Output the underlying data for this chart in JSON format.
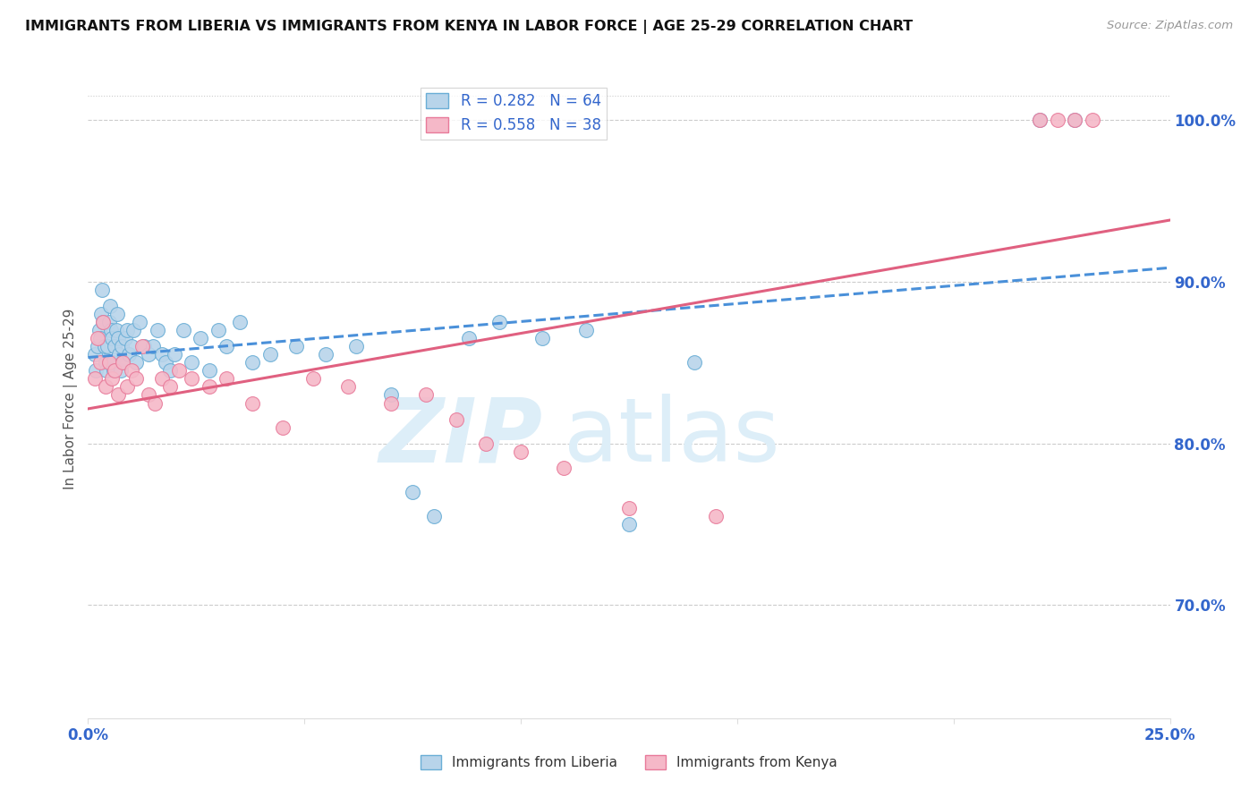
{
  "title": "IMMIGRANTS FROM LIBERIA VS IMMIGRANTS FROM KENYA IN LABOR FORCE | AGE 25-29 CORRELATION CHART",
  "source": "Source: ZipAtlas.com",
  "ylabel": "In Labor Force | Age 25-29",
  "right_yticks": [
    70.0,
    80.0,
    90.0,
    100.0
  ],
  "xmin": 0.0,
  "xmax": 25.0,
  "ymin": 63.0,
  "ymax": 102.5,
  "liberia_R": 0.282,
  "liberia_N": 64,
  "kenya_R": 0.558,
  "kenya_N": 38,
  "liberia_color": "#b8d4ea",
  "kenya_color": "#f5b8c8",
  "liberia_edge_color": "#6aaed6",
  "kenya_edge_color": "#e87a9a",
  "liberia_line_color": "#4a90d9",
  "kenya_line_color": "#e06080",
  "legend_text_color": "#3366cc",
  "axis_label_color": "#3366cc",
  "watermark_color": "#ddeef8",
  "grid_color": "#cccccc",
  "background_color": "#ffffff",
  "liberia_x": [
    0.15,
    0.18,
    0.22,
    0.25,
    0.28,
    0.3,
    0.32,
    0.35,
    0.38,
    0.4,
    0.42,
    0.45,
    0.48,
    0.5,
    0.52,
    0.55,
    0.58,
    0.6,
    0.62,
    0.65,
    0.68,
    0.7,
    0.72,
    0.75,
    0.78,
    0.8,
    0.85,
    0.9,
    0.95,
    1.0,
    1.05,
    1.1,
    1.2,
    1.3,
    1.4,
    1.5,
    1.6,
    1.7,
    1.8,
    1.9,
    2.0,
    2.2,
    2.4,
    2.6,
    2.8,
    3.0,
    3.2,
    3.5,
    3.8,
    4.2,
    4.8,
    5.5,
    6.2,
    7.0,
    7.5,
    8.0,
    8.8,
    9.5,
    10.5,
    11.5,
    12.5,
    14.0,
    22.0,
    22.8
  ],
  "liberia_y": [
    85.5,
    84.5,
    86.0,
    87.0,
    86.5,
    88.0,
    89.5,
    87.5,
    86.0,
    85.0,
    84.5,
    86.0,
    87.5,
    88.5,
    87.0,
    86.5,
    85.0,
    84.5,
    86.0,
    87.0,
    88.0,
    86.5,
    85.5,
    84.5,
    86.0,
    85.0,
    86.5,
    87.0,
    85.5,
    86.0,
    87.0,
    85.0,
    87.5,
    86.0,
    85.5,
    86.0,
    87.0,
    85.5,
    85.0,
    84.5,
    85.5,
    87.0,
    85.0,
    86.5,
    84.5,
    87.0,
    86.0,
    87.5,
    85.0,
    85.5,
    86.0,
    85.5,
    86.0,
    83.0,
    77.0,
    75.5,
    86.5,
    87.5,
    86.5,
    87.0,
    75.0,
    85.0,
    100.0,
    100.0
  ],
  "kenya_x": [
    0.15,
    0.22,
    0.28,
    0.35,
    0.4,
    0.48,
    0.55,
    0.62,
    0.7,
    0.8,
    0.9,
    1.0,
    1.1,
    1.25,
    1.4,
    1.55,
    1.7,
    1.9,
    2.1,
    2.4,
    2.8,
    3.2,
    3.8,
    4.5,
    5.2,
    6.0,
    7.0,
    7.8,
    8.5,
    9.2,
    10.0,
    11.0,
    12.5,
    14.5,
    22.0,
    22.4,
    22.8,
    23.2
  ],
  "kenya_y": [
    84.0,
    86.5,
    85.0,
    87.5,
    83.5,
    85.0,
    84.0,
    84.5,
    83.0,
    85.0,
    83.5,
    84.5,
    84.0,
    86.0,
    83.0,
    82.5,
    84.0,
    83.5,
    84.5,
    84.0,
    83.5,
    84.0,
    82.5,
    81.0,
    84.0,
    83.5,
    82.5,
    83.0,
    81.5,
    80.0,
    79.5,
    78.5,
    76.0,
    75.5,
    100.0,
    100.0,
    100.0,
    100.0
  ]
}
